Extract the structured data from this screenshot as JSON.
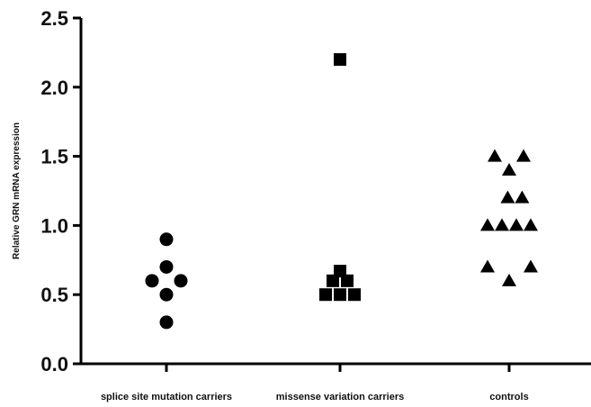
{
  "chart_data": {
    "type": "scatter",
    "title": "",
    "xlabel": "",
    "ylabel": "Relative GRN mRNA expression",
    "ylim": [
      0,
      2.5
    ],
    "yticks": [
      "0.0",
      "0.5",
      "1.0",
      "1.5",
      "2.0",
      "2.5"
    ],
    "grid": false,
    "categories": [
      "splice site mutation carriers",
      "missense variation carriers",
      "controls"
    ],
    "series": [
      {
        "category": "splice site mutation carriers",
        "marker": "circle",
        "points": [
          {
            "offset": 0,
            "y": 0.9
          },
          {
            "offset": 0,
            "y": 0.7
          },
          {
            "offset": -1,
            "y": 0.6
          },
          {
            "offset": 1,
            "y": 0.6
          },
          {
            "offset": 0,
            "y": 0.5
          },
          {
            "offset": 0,
            "y": 0.3
          }
        ]
      },
      {
        "category": "missense variation carriers",
        "marker": "square",
        "points": [
          {
            "offset": 0,
            "y": 2.2
          },
          {
            "offset": 0,
            "y": 0.67
          },
          {
            "offset": -0.5,
            "y": 0.6
          },
          {
            "offset": 0.5,
            "y": 0.6
          },
          {
            "offset": -1,
            "y": 0.5
          },
          {
            "offset": 0,
            "y": 0.5
          },
          {
            "offset": 1,
            "y": 0.5
          }
        ]
      },
      {
        "category": "controls",
        "marker": "triangle",
        "points": [
          {
            "offset": -1,
            "y": 1.5
          },
          {
            "offset": 1,
            "y": 1.5
          },
          {
            "offset": 0,
            "y": 1.4
          },
          {
            "offset": -0.1,
            "y": 1.2
          },
          {
            "offset": 0.9,
            "y": 1.2
          },
          {
            "offset": -1.5,
            "y": 1.0
          },
          {
            "offset": -0.5,
            "y": 1.0
          },
          {
            "offset": 0.5,
            "y": 1.0
          },
          {
            "offset": 1.5,
            "y": 1.0
          },
          {
            "offset": -1.5,
            "y": 0.7
          },
          {
            "offset": 1.5,
            "y": 0.7
          },
          {
            "offset": 0,
            "y": 0.6
          }
        ]
      }
    ]
  }
}
